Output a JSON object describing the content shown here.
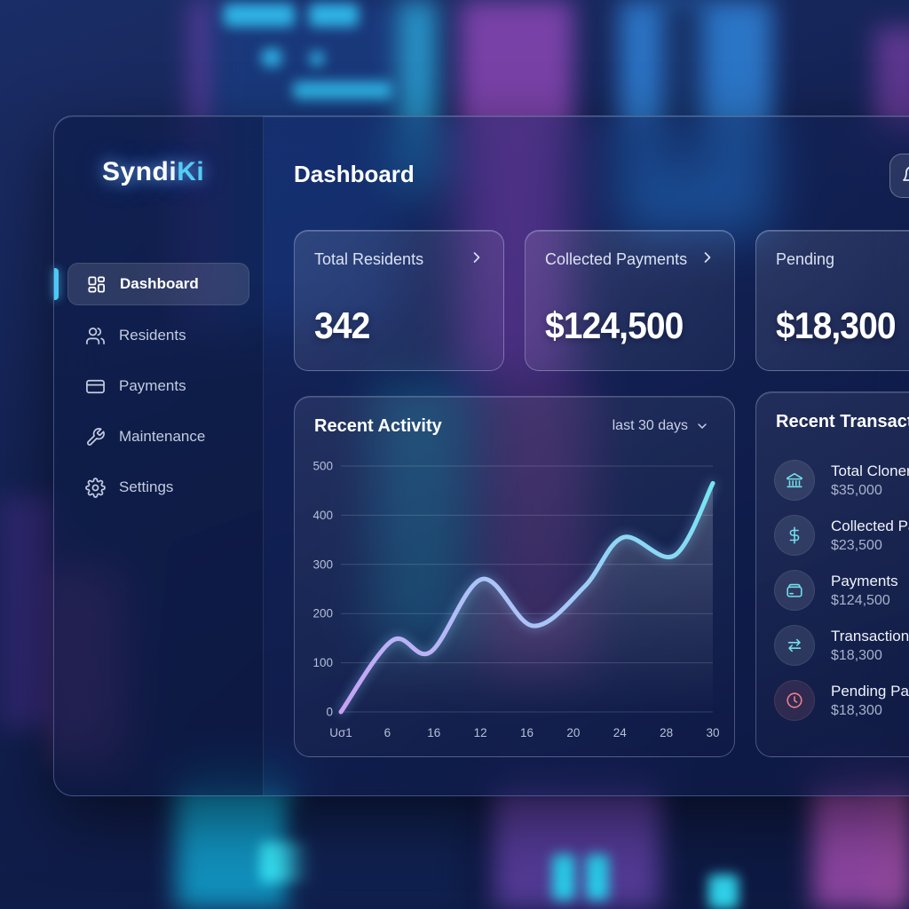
{
  "brand": {
    "primary": "Syndi",
    "accent": "Ki"
  },
  "header": {
    "title": "Dashboard"
  },
  "sidebar": {
    "items": [
      {
        "label": "Dashboard"
      },
      {
        "label": "Residents"
      },
      {
        "label": "Payments"
      },
      {
        "label": "Maintenance"
      },
      {
        "label": "Settings"
      }
    ]
  },
  "stat_cards": [
    {
      "label": "Total Residents",
      "value": "342"
    },
    {
      "label": "Collected Payments",
      "value": "$124,500"
    },
    {
      "label": "Pending",
      "value": "$18,300"
    }
  ],
  "activity": {
    "title": "Recent Activity",
    "range_label": "last 30 days"
  },
  "chart_data": {
    "type": "line",
    "title": "Recent Activity",
    "x": [
      1,
      5,
      8,
      12,
      16,
      20,
      23,
      27,
      30
    ],
    "values": [
      0,
      145,
      122,
      270,
      175,
      255,
      355,
      318,
      465
    ],
    "x_tick_labels": [
      "Uσ1",
      "6",
      "16",
      "12",
      "16",
      "20",
      "24",
      "28",
      "30"
    ],
    "y_ticks": [
      0,
      100,
      200,
      300,
      400,
      500
    ],
    "ylim": [
      0,
      500
    ],
    "xlabel": "",
    "ylabel": "",
    "grid": true,
    "legend": "none",
    "line_gradient": [
      "#c9a0f5",
      "#a9c6f8",
      "#74e6f2"
    ]
  },
  "transactions": {
    "title": "Recent Transactions",
    "items": [
      {
        "label": "Total Cloner",
        "amount": "$35,000"
      },
      {
        "label": "Collected Payments",
        "amount": "$23,500"
      },
      {
        "label": "Payments",
        "amount": "$124,500"
      },
      {
        "label": "Transaction",
        "amount": "$18,300"
      },
      {
        "label": "Pending Payments",
        "amount": "$18,300"
      }
    ]
  },
  "colors": {
    "accent_cyan": "#4fc9f4",
    "alert_red": "#f0808d",
    "line_start": "#c9a0f5",
    "line_end": "#74e6f2"
  }
}
